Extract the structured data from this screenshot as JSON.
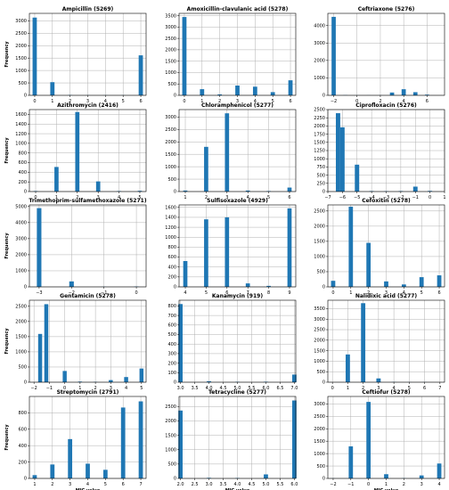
{
  "bar_color": "#1f77b4",
  "grid": true,
  "chart_data": [
    {
      "type": "bar",
      "title": "Ampicillin (5269)",
      "ylabel": "Frequency",
      "xlabel": "",
      "xlim": [
        -0.3,
        6.3
      ],
      "ylim": [
        0,
        3300
      ],
      "xticks": [
        0,
        1,
        2,
        3,
        4,
        5,
        6
      ],
      "xtick_labels": [
        "0",
        "1",
        "2",
        "3",
        "4",
        "5",
        "6"
      ],
      "yticks": [
        0,
        500,
        1000,
        1500,
        2000,
        2500,
        3000
      ],
      "ytick_labels": [
        "0",
        "500",
        "1000",
        "1500",
        "2000",
        "2500",
        "3000"
      ],
      "bar_width": 0.24,
      "bars": [
        {
          "x": 0,
          "y": 3130
        },
        {
          "x": 1,
          "y": 530
        },
        {
          "x": 2,
          "y": 12
        },
        {
          "x": 3,
          "y": 5
        },
        {
          "x": 4,
          "y": 5
        },
        {
          "x": 5,
          "y": 5
        },
        {
          "x": 6,
          "y": 1610
        }
      ]
    },
    {
      "type": "bar",
      "title": "Amoxicillin-clavulanic acid (5278)",
      "ylabel": "",
      "xlabel": "",
      "xlim": [
        -0.3,
        6.3
      ],
      "ylim": [
        0,
        3600
      ],
      "xticks": [
        0,
        1,
        2,
        3,
        4,
        5,
        6
      ],
      "xtick_labels": [
        "0",
        "1",
        "2",
        "3",
        "4",
        "5",
        "6"
      ],
      "yticks": [
        0,
        500,
        1000,
        1500,
        2000,
        2500,
        3000,
        3500
      ],
      "ytick_labels": [
        "0",
        "500",
        "1000",
        "1500",
        "2000",
        "2500",
        "3000",
        "3500"
      ],
      "bar_width": 0.24,
      "bars": [
        {
          "x": 0,
          "y": 3440
        },
        {
          "x": 1,
          "y": 270
        },
        {
          "x": 2,
          "y": 40
        },
        {
          "x": 3,
          "y": 430
        },
        {
          "x": 4,
          "y": 380
        },
        {
          "x": 5,
          "y": 140
        },
        {
          "x": 6,
          "y": 660
        }
      ]
    },
    {
      "type": "bar",
      "title": "Ceftriaxone (5276)",
      "ylabel": "",
      "xlabel": "",
      "xlim": [
        -2.5,
        7.5
      ],
      "ylim": [
        0,
        4700
      ],
      "xticks": [
        -2,
        0,
        2,
        4,
        6
      ],
      "xtick_labels": [
        "−2",
        "0",
        "2",
        "4",
        "6"
      ],
      "yticks": [
        0,
        1000,
        2000,
        3000,
        4000
      ],
      "ytick_labels": [
        "0",
        "1000",
        "2000",
        "3000",
        "4000"
      ],
      "bar_width": 0.36,
      "bars": [
        {
          "x": -2,
          "y": 4500
        },
        {
          "x": -1,
          "y": 10
        },
        {
          "x": 0,
          "y": 5
        },
        {
          "x": 1,
          "y": 5
        },
        {
          "x": 2,
          "y": 5
        },
        {
          "x": 3,
          "y": 160
        },
        {
          "x": 4,
          "y": 350
        },
        {
          "x": 5,
          "y": 180
        },
        {
          "x": 6,
          "y": 40
        }
      ]
    },
    {
      "type": "bar",
      "title": "Azithromycin (2416)",
      "ylabel": "Frequency",
      "xlabel": "",
      "xlim": [
        -0.3,
        5.3
      ],
      "ylim": [
        0,
        1700
      ],
      "xticks": [
        0,
        1,
        2,
        3,
        4,
        5
      ],
      "xtick_labels": [
        "0",
        "1",
        "2",
        "3",
        "4",
        "5"
      ],
      "yticks": [
        0,
        200,
        400,
        600,
        800,
        1000,
        1200,
        1400,
        1600
      ],
      "ytick_labels": [
        "0",
        "200",
        "400",
        "600",
        "800",
        "1000",
        "1200",
        "1400",
        "1600"
      ],
      "bar_width": 0.2,
      "bars": [
        {
          "x": 0,
          "y": 10
        },
        {
          "x": 1,
          "y": 510
        },
        {
          "x": 2,
          "y": 1650
        },
        {
          "x": 3,
          "y": 210
        },
        {
          "x": 4,
          "y": 10
        },
        {
          "x": 5,
          "y": 15
        }
      ]
    },
    {
      "type": "bar",
      "title": "Chloramphenicol (5277)",
      "ylabel": "",
      "xlabel": "",
      "xlim": [
        0.7,
        6.3
      ],
      "ylim": [
        0,
        3300
      ],
      "xticks": [
        1,
        2,
        3,
        4,
        5,
        6
      ],
      "xtick_labels": [
        "1",
        "2",
        "3",
        "4",
        "5",
        "6"
      ],
      "yticks": [
        0,
        500,
        1000,
        1500,
        2000,
        2500,
        3000
      ],
      "ytick_labels": [
        "0",
        "500",
        "1000",
        "1500",
        "2000",
        "2500",
        "3000"
      ],
      "bar_width": 0.2,
      "bars": [
        {
          "x": 1,
          "y": 40
        },
        {
          "x": 2,
          "y": 1800
        },
        {
          "x": 3,
          "y": 3150
        },
        {
          "x": 4,
          "y": 40
        },
        {
          "x": 5,
          "y": 20
        },
        {
          "x": 6,
          "y": 160
        }
      ]
    },
    {
      "type": "bar",
      "title": "Ciprofloxacin (5276)",
      "ylabel": "",
      "xlabel": "",
      "xlim": [
        -7,
        1
      ],
      "ylim": [
        0,
        2500
      ],
      "xticks": [
        -7,
        -6,
        -5,
        -4,
        -3,
        -2,
        -1,
        0,
        1
      ],
      "xtick_labels": [
        "−7",
        "−6",
        "−5",
        "−4",
        "−3",
        "−2",
        "−1",
        "0",
        "1"
      ],
      "yticks": [
        0,
        250,
        500,
        750,
        1000,
        1250,
        1500,
        1750,
        2000,
        2250,
        2500
      ],
      "ytick_labels": [
        "0",
        "250",
        "500",
        "750",
        "1000",
        "1250",
        "1500",
        "1750",
        "2000",
        "2250",
        "2500"
      ],
      "bar_width": 0.3,
      "bars": [
        {
          "x": -6.3,
          "y": 2390
        },
        {
          "x": -6,
          "y": 1960
        },
        {
          "x": -5,
          "y": 820
        },
        {
          "x": -4,
          "y": 15
        },
        {
          "x": -3,
          "y": 10
        },
        {
          "x": -2,
          "y": 15
        },
        {
          "x": -1,
          "y": 150
        },
        {
          "x": 0,
          "y": 20
        }
      ]
    },
    {
      "type": "bar",
      "title": "Trimethoprim-sulfamethoxazole (5271)",
      "ylabel": "Frequency",
      "xlabel": "",
      "xlim": [
        -3.3,
        0.3
      ],
      "ylim": [
        0,
        5100
      ],
      "xticks": [
        -3,
        -2,
        -1,
        0
      ],
      "xtick_labels": [
        "−3",
        "−2",
        "−1",
        "0"
      ],
      "yticks": [
        0,
        1000,
        2000,
        3000,
        4000,
        5000
      ],
      "ytick_labels": [
        "0",
        "1000",
        "2000",
        "3000",
        "4000",
        "5000"
      ],
      "bar_width": 0.14,
      "bars": [
        {
          "x": -3,
          "y": 4900
        },
        {
          "x": -2,
          "y": 340
        },
        {
          "x": -1,
          "y": 10
        },
        {
          "x": 0,
          "y": 20
        }
      ]
    },
    {
      "type": "bar",
      "title": "Sulfisoxazole (4929)",
      "ylabel": "",
      "xlabel": "",
      "xlim": [
        3.7,
        9.3
      ],
      "ylim": [
        0,
        1650
      ],
      "xticks": [
        4,
        5,
        6,
        7,
        8,
        9
      ],
      "xtick_labels": [
        "4",
        "5",
        "6",
        "7",
        "8",
        "9"
      ],
      "yticks": [
        0,
        200,
        400,
        600,
        800,
        1000,
        1200,
        1400,
        1600
      ],
      "ytick_labels": [
        "0",
        "200",
        "400",
        "600",
        "800",
        "1000",
        "1200",
        "1400",
        "1600"
      ],
      "bar_width": 0.2,
      "bars": [
        {
          "x": 4,
          "y": 520
        },
        {
          "x": 5,
          "y": 1360
        },
        {
          "x": 6,
          "y": 1400
        },
        {
          "x": 7,
          "y": 70
        },
        {
          "x": 8,
          "y": 20
        },
        {
          "x": 9,
          "y": 1580
        }
      ]
    },
    {
      "type": "bar",
      "title": "Cefoxitin (5278)",
      "ylabel": "",
      "xlabel": "",
      "xlim": [
        -0.3,
        6.3
      ],
      "ylim": [
        0,
        2700
      ],
      "xticks": [
        0,
        1,
        2,
        3,
        4,
        5,
        6
      ],
      "xtick_labels": [
        "0",
        "1",
        "2",
        "3",
        "4",
        "5",
        "6"
      ],
      "yticks": [
        0,
        500,
        1000,
        1500,
        2000,
        2500
      ],
      "ytick_labels": [
        "0",
        "500",
        "1000",
        "1500",
        "2000",
        "2500"
      ],
      "bar_width": 0.24,
      "bars": [
        {
          "x": 0,
          "y": 200
        },
        {
          "x": 1,
          "y": 2640
        },
        {
          "x": 2,
          "y": 1450
        },
        {
          "x": 3,
          "y": 180
        },
        {
          "x": 4,
          "y": 80
        },
        {
          "x": 5,
          "y": 320
        },
        {
          "x": 6,
          "y": 380
        }
      ]
    },
    {
      "type": "bar",
      "title": "Gentamicin (5278)",
      "ylabel": "Frequency",
      "xlabel": "",
      "xlim": [
        -2.3,
        5.3
      ],
      "ylim": [
        0,
        2700
      ],
      "xticks": [
        -2,
        -1,
        0,
        1,
        2,
        3,
        4,
        5
      ],
      "xtick_labels": [
        "−2",
        "−1",
        "0",
        "1",
        "2",
        "3",
        "4",
        "5"
      ],
      "yticks": [
        0,
        500,
        1000,
        1500,
        2000,
        2500
      ],
      "ytick_labels": [
        "0",
        "500",
        "1000",
        "1500",
        "2000",
        "2500"
      ],
      "bar_width": 0.26,
      "bars": [
        {
          "x": -1.6,
          "y": 1590
        },
        {
          "x": -1.2,
          "y": 2570
        },
        {
          "x": 0,
          "y": 370
        },
        {
          "x": 1,
          "y": 20
        },
        {
          "x": 2,
          "y": 10
        },
        {
          "x": 3,
          "y": 70
        },
        {
          "x": 4,
          "y": 170
        },
        {
          "x": 5,
          "y": 450
        }
      ]
    },
    {
      "type": "bar",
      "title": "Kanamycin (919)",
      "ylabel": "",
      "xlabel": "",
      "xlim": [
        2.95,
        7.05
      ],
      "ylim": [
        0,
        860
      ],
      "xticks": [
        3,
        3.5,
        4,
        4.5,
        5,
        5.5,
        6,
        6.5,
        7
      ],
      "xtick_labels": [
        "3.0",
        "3.5",
        "4.0",
        "4.5",
        "5.0",
        "5.5",
        "6.0",
        "6.5",
        "7.0"
      ],
      "yticks": [
        0,
        100,
        200,
        300,
        400,
        500,
        600,
        700,
        800
      ],
      "ytick_labels": [
        "0",
        "100",
        "200",
        "300",
        "400",
        "500",
        "600",
        "700",
        "800"
      ],
      "bar_width": 0.15,
      "bars": [
        {
          "x": 3,
          "y": 820
        },
        {
          "x": 4,
          "y": 10
        },
        {
          "x": 5,
          "y": 4
        },
        {
          "x": 6,
          "y": 5
        },
        {
          "x": 7,
          "y": 80
        }
      ]
    },
    {
      "type": "bar",
      "title": "Nalidixic acid (5277)",
      "ylabel": "",
      "xlabel": "",
      "xlim": [
        -0.3,
        7.3
      ],
      "ylim": [
        0,
        3900
      ],
      "xticks": [
        0,
        1,
        2,
        3,
        4,
        5,
        6,
        7
      ],
      "xtick_labels": [
        "0",
        "1",
        "2",
        "3",
        "4",
        "5",
        "6",
        "7"
      ],
      "yticks": [
        0,
        500,
        1000,
        1500,
        2000,
        2500,
        3000,
        3500
      ],
      "ytick_labels": [
        "0",
        "500",
        "1000",
        "1500",
        "2000",
        "2500",
        "3000",
        "3500"
      ],
      "bar_width": 0.28,
      "bars": [
        {
          "x": 1,
          "y": 1320
        },
        {
          "x": 2,
          "y": 3760
        },
        {
          "x": 3,
          "y": 180
        },
        {
          "x": 4,
          "y": 10
        },
        {
          "x": 5,
          "y": 5
        },
        {
          "x": 6,
          "y": 5
        }
      ]
    },
    {
      "type": "bar",
      "title": "Streptomycin (2791)",
      "ylabel": "Frequency",
      "xlabel": "MIC value",
      "xlim": [
        0.7,
        7.3
      ],
      "ylim": [
        0,
        1000
      ],
      "xticks": [
        1,
        2,
        3,
        4,
        5,
        6,
        7
      ],
      "xtick_labels": [
        "1",
        "2",
        "3",
        "4",
        "5",
        "6",
        "7"
      ],
      "yticks": [
        0,
        200,
        400,
        600,
        800
      ],
      "ytick_labels": [
        "0",
        "200",
        "400",
        "600",
        "800"
      ],
      "bar_width": 0.24,
      "bars": [
        {
          "x": 1,
          "y": 40
        },
        {
          "x": 2,
          "y": 170
        },
        {
          "x": 3,
          "y": 480
        },
        {
          "x": 4,
          "y": 180
        },
        {
          "x": 5,
          "y": 105
        },
        {
          "x": 6,
          "y": 865
        },
        {
          "x": 7,
          "y": 940
        }
      ]
    },
    {
      "type": "bar",
      "title": "Tetracycline (5277)",
      "ylabel": "",
      "xlabel": "MIC value",
      "xlim": [
        1.95,
        6.05
      ],
      "ylim": [
        0,
        2850
      ],
      "xticks": [
        2,
        2.5,
        3,
        3.5,
        4,
        4.5,
        5,
        5.5,
        6
      ],
      "xtick_labels": [
        "2.0",
        "2.5",
        "3.0",
        "3.5",
        "4.0",
        "4.5",
        "5.0",
        "5.5",
        "6.0"
      ],
      "yticks": [
        0,
        500,
        1000,
        1500,
        2000,
        2500
      ],
      "ytick_labels": [
        "0",
        "500",
        "1000",
        "1500",
        "2000",
        "2500"
      ],
      "bar_width": 0.15,
      "bars": [
        {
          "x": 2,
          "y": 2360
        },
        {
          "x": 3,
          "y": 20
        },
        {
          "x": 4,
          "y": 15
        },
        {
          "x": 5,
          "y": 140
        },
        {
          "x": 6,
          "y": 2710
        }
      ]
    },
    {
      "type": "bar",
      "title": "Ceftiofur (5278)",
      "ylabel": "",
      "xlabel": "MIC value",
      "xlim": [
        -2.3,
        4.3
      ],
      "ylim": [
        0,
        3300
      ],
      "xticks": [
        -2,
        -1,
        0,
        1,
        2,
        3,
        4
      ],
      "xtick_labels": [
        "−2",
        "−1",
        "0",
        "1",
        "2",
        "3",
        "4"
      ],
      "yticks": [
        0,
        500,
        1000,
        1500,
        2000,
        2500,
        3000
      ],
      "ytick_labels": [
        "0",
        "500",
        "1000",
        "1500",
        "2000",
        "2500",
        "3000"
      ],
      "bar_width": 0.24,
      "bars": [
        {
          "x": -2,
          "y": 5
        },
        {
          "x": -1,
          "y": 1290
        },
        {
          "x": 0,
          "y": 3080
        },
        {
          "x": 1,
          "y": 170
        },
        {
          "x": 2,
          "y": 10
        },
        {
          "x": 3,
          "y": 120
        },
        {
          "x": 4,
          "y": 600
        }
      ]
    }
  ]
}
